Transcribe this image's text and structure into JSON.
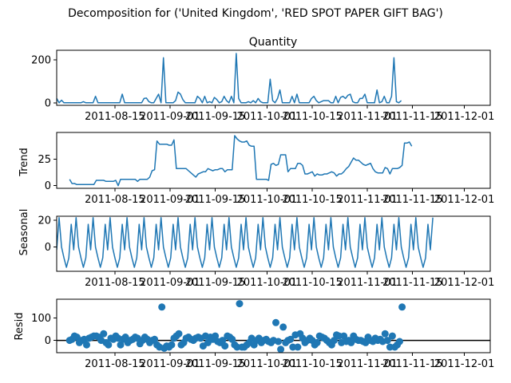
{
  "chart_data": {
    "suptitle": "Decomposition for ('United Kingdom', 'RED SPOT PAPER GIFT BAG')",
    "x_tick_labels": [
      "2011-08-15",
      "2011-09-01",
      "2011-09-15",
      "2011-10-01",
      "2011-10-15",
      "2011-11-01",
      "2011-11-15",
      "2011-12-01"
    ],
    "x_tick_dates": [
      "2011-08-15",
      "2011-09-01",
      "2011-09-15",
      "2011-10-01",
      "2011-10-15",
      "2011-11-01",
      "2011-11-15",
      "2011-12-01"
    ],
    "x_range": [
      "2011-07-28",
      "2011-12-09"
    ],
    "line_color": "#1f77b4",
    "panels": [
      {
        "type": "line",
        "title": "Quantity",
        "ylabel": "",
        "ylim": [
          -12,
          245
        ],
        "yticks": [
          0,
          200
        ],
        "x_start": "2011-07-28",
        "step_days": 0.75,
        "values": [
          20,
          0,
          12,
          0,
          0,
          0,
          0,
          0,
          0,
          0,
          0,
          5,
          0,
          0,
          0,
          0,
          30,
          0,
          0,
          0,
          0,
          0,
          0,
          0,
          0,
          0,
          0,
          40,
          0,
          0,
          0,
          0,
          0,
          0,
          0,
          0,
          20,
          22,
          5,
          0,
          0,
          20,
          40,
          0,
          210,
          0,
          0,
          0,
          0,
          10,
          50,
          40,
          15,
          0,
          0,
          0,
          0,
          0,
          30,
          20,
          0,
          30,
          0,
          5,
          0,
          25,
          15,
          0,
          5,
          30,
          10,
          0,
          30,
          0,
          230,
          20,
          0,
          0,
          0,
          5,
          0,
          10,
          0,
          20,
          5,
          0,
          0,
          0,
          110,
          10,
          0,
          20,
          60,
          0,
          0,
          0,
          0,
          30,
          0,
          40,
          0,
          0,
          0,
          0,
          0,
          20,
          30,
          10,
          0,
          5,
          10,
          10,
          10,
          0,
          0,
          30,
          0,
          25,
          30,
          20,
          35,
          40,
          5,
          0,
          0,
          20,
          20,
          40,
          0,
          0,
          0,
          0,
          60,
          0,
          5,
          30,
          0,
          0,
          30,
          210,
          5,
          0,
          10
        ],
        "hline": null
      },
      {
        "type": "line",
        "title": "",
        "ylabel": "Trend",
        "ylim": [
          -2.5,
          50
        ],
        "yticks": [
          0,
          25
        ],
        "x_start": "2011-08-01",
        "step_days": 0.75,
        "values": [
          6,
          2,
          2,
          1,
          1,
          1,
          1,
          1,
          1,
          1,
          1,
          5,
          5,
          5,
          5,
          4,
          4,
          4,
          4,
          5,
          0,
          6,
          6,
          6,
          6,
          6,
          6,
          6,
          4,
          6,
          6,
          6,
          6,
          8,
          14,
          15,
          42,
          39,
          39,
          39,
          39,
          38,
          38,
          43,
          16,
          16,
          16,
          16,
          16,
          14,
          12,
          10,
          8,
          11,
          12,
          13,
          13,
          16,
          15,
          14,
          15,
          15,
          16,
          16,
          13,
          15,
          15,
          15,
          47,
          44,
          42,
          41,
          41,
          42,
          38,
          37,
          37,
          6,
          6,
          6,
          6,
          6,
          5,
          20,
          21,
          19,
          20,
          29,
          29,
          29,
          13,
          16,
          16,
          16,
          21,
          21,
          19,
          11,
          11,
          12,
          13,
          9,
          11,
          10,
          10,
          11,
          11,
          12,
          13,
          12,
          9,
          11,
          11,
          13,
          16,
          18,
          22,
          26,
          24,
          24,
          22,
          20,
          19,
          20,
          21,
          16,
          13,
          12,
          12,
          12,
          17,
          16,
          11,
          16,
          16,
          16,
          17,
          19,
          40,
          40,
          41,
          37
        ],
        "hline": null
      },
      {
        "type": "line",
        "title": "",
        "ylabel": "Seasonal",
        "ylim": [
          -18,
          23
        ],
        "yticks": [
          0,
          20
        ],
        "x_start": "2011-07-28",
        "step_days": 0.75,
        "values": [
          -2,
          22,
          0,
          -8,
          -15,
          -8,
          17,
          -2,
          22,
          0,
          -8,
          -15,
          -8,
          17,
          -2,
          22,
          0,
          -8,
          -15,
          -8,
          17,
          -2,
          22,
          0,
          -8,
          -15,
          -8,
          17,
          -2,
          22,
          0,
          -8,
          -15,
          -8,
          17,
          -2,
          22,
          0,
          -8,
          -15,
          -8,
          17,
          -2,
          22,
          0,
          -8,
          -15,
          -8,
          17,
          -2,
          22,
          0,
          -8,
          -15,
          -8,
          17,
          -2,
          22,
          0,
          -8,
          -15,
          -8,
          17,
          -2,
          22,
          0,
          -8,
          -15,
          -8,
          17,
          -2,
          22,
          0,
          -8,
          -15,
          -8,
          17,
          -2,
          22,
          0,
          -8,
          -15,
          -8,
          17,
          -2,
          22,
          0,
          -8,
          -15,
          -8,
          17,
          -2,
          22,
          0,
          -8,
          -15,
          -8,
          17,
          -2,
          22,
          0,
          -8,
          -15,
          -8,
          17,
          -2,
          22,
          0,
          -8,
          -15,
          -8,
          17,
          -2,
          22,
          0,
          -8,
          -15,
          -8,
          17,
          -2,
          22,
          0,
          -8,
          -15,
          -8,
          17,
          -2,
          22,
          0,
          -8,
          -15,
          -8,
          17,
          -2,
          22,
          0,
          -8,
          -15,
          -8,
          17,
          -2,
          22,
          0,
          -8,
          -15,
          -8,
          17,
          -2,
          22,
          0,
          -8,
          -15,
          -8,
          17,
          -2,
          22
        ],
        "hline": null
      },
      {
        "type": "scatter",
        "title": "",
        "ylabel": "Resid",
        "ylim": [
          -55,
          185
        ],
        "yticks": [
          0,
          100
        ],
        "x_start": "2011-08-01",
        "step_days": 0.75,
        "values": [
          0,
          5,
          20,
          15,
          -10,
          0,
          5,
          -20,
          10,
          15,
          20,
          20,
          15,
          0,
          30,
          -10,
          -20,
          10,
          5,
          20,
          10,
          -20,
          5,
          15,
          -10,
          0,
          5,
          15,
          10,
          -15,
          0,
          15,
          5,
          -10,
          0,
          5,
          -20,
          -30,
          150,
          -35,
          -25,
          -30,
          -20,
          10,
          20,
          30,
          -20,
          -10,
          10,
          15,
          5,
          0,
          10,
          15,
          10,
          -25,
          20,
          -10,
          15,
          5,
          20,
          -5,
          -10,
          0,
          -25,
          20,
          15,
          5,
          -20,
          -30,
          165,
          -30,
          -30,
          -20,
          -10,
          10,
          -20,
          0,
          10,
          -10,
          0,
          5,
          -5,
          -10,
          0,
          80,
          -5,
          -40,
          60,
          -10,
          0,
          5,
          -30,
          25,
          -30,
          30,
          10,
          -10,
          0,
          10,
          0,
          -20,
          -10,
          20,
          15,
          10,
          0,
          -10,
          -20,
          0,
          25,
          20,
          -10,
          20,
          -5,
          0,
          -10,
          20,
          5,
          0,
          0,
          -5,
          -10,
          15,
          0,
          -5,
          10,
          0,
          5,
          -5,
          30,
          0,
          -30,
          20,
          -30,
          -20,
          -5,
          150
        ],
        "hline": 0
      }
    ]
  }
}
